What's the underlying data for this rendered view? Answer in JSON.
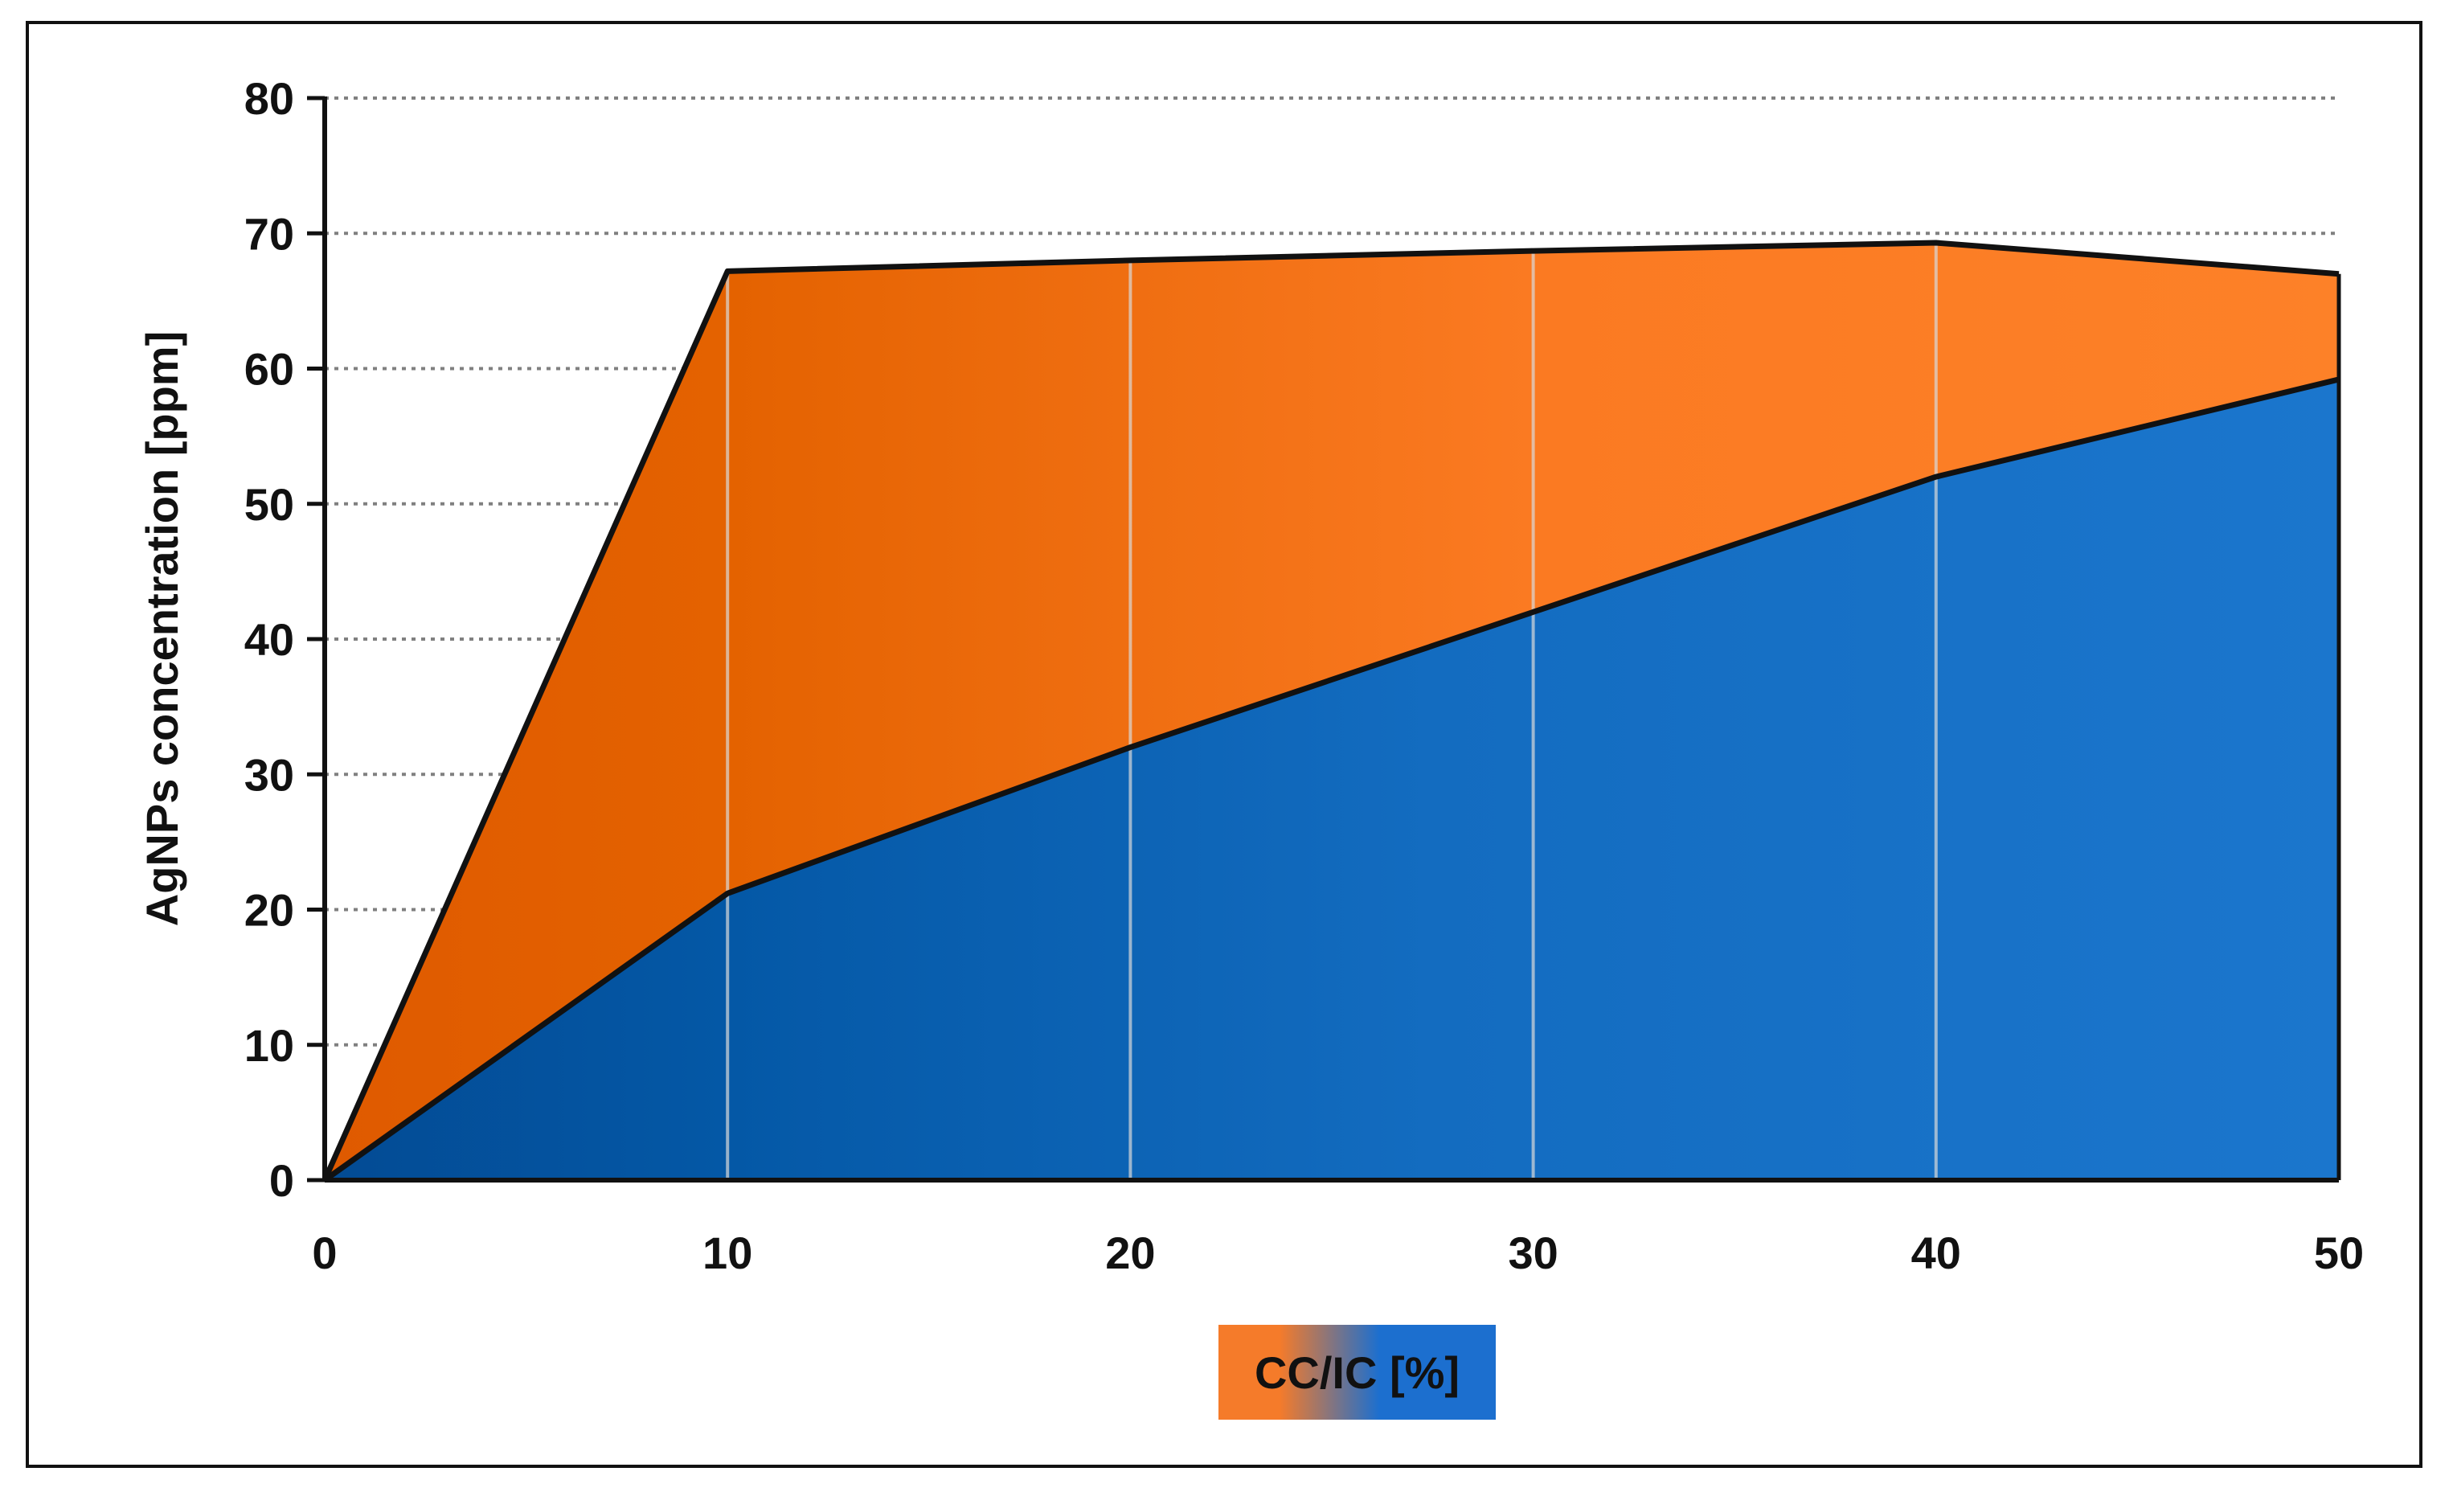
{
  "chart_data": {
    "type": "area",
    "stacked": true,
    "title": "",
    "xlabel": "CC/IC [%]",
    "ylabel": "AgNPs concentration [ppm]",
    "x": [
      0,
      10,
      20,
      30,
      40,
      50
    ],
    "xlim": [
      0,
      50
    ],
    "ylim": [
      0,
      80
    ],
    "x_ticks": [
      "0",
      "10",
      "20",
      "30",
      "40",
      "50"
    ],
    "y_ticks": [
      "0",
      "10",
      "20",
      "30",
      "40",
      "50",
      "60",
      "70",
      "80"
    ],
    "series": [
      {
        "values": [
          0,
          21.2,
          32,
          42,
          52,
          59.2
        ],
        "color": "#1a6fcc"
      },
      {
        "values": [
          0,
          46,
          36,
          26.7,
          17.3,
          7.8
        ],
        "color": "#f47a22"
      }
    ],
    "totals": [
      0,
      67.2,
      68,
      68.7,
      69.3,
      67
    ],
    "grid": {
      "horizontal": "dotted",
      "vertical": "light"
    },
    "legend": "none"
  }
}
